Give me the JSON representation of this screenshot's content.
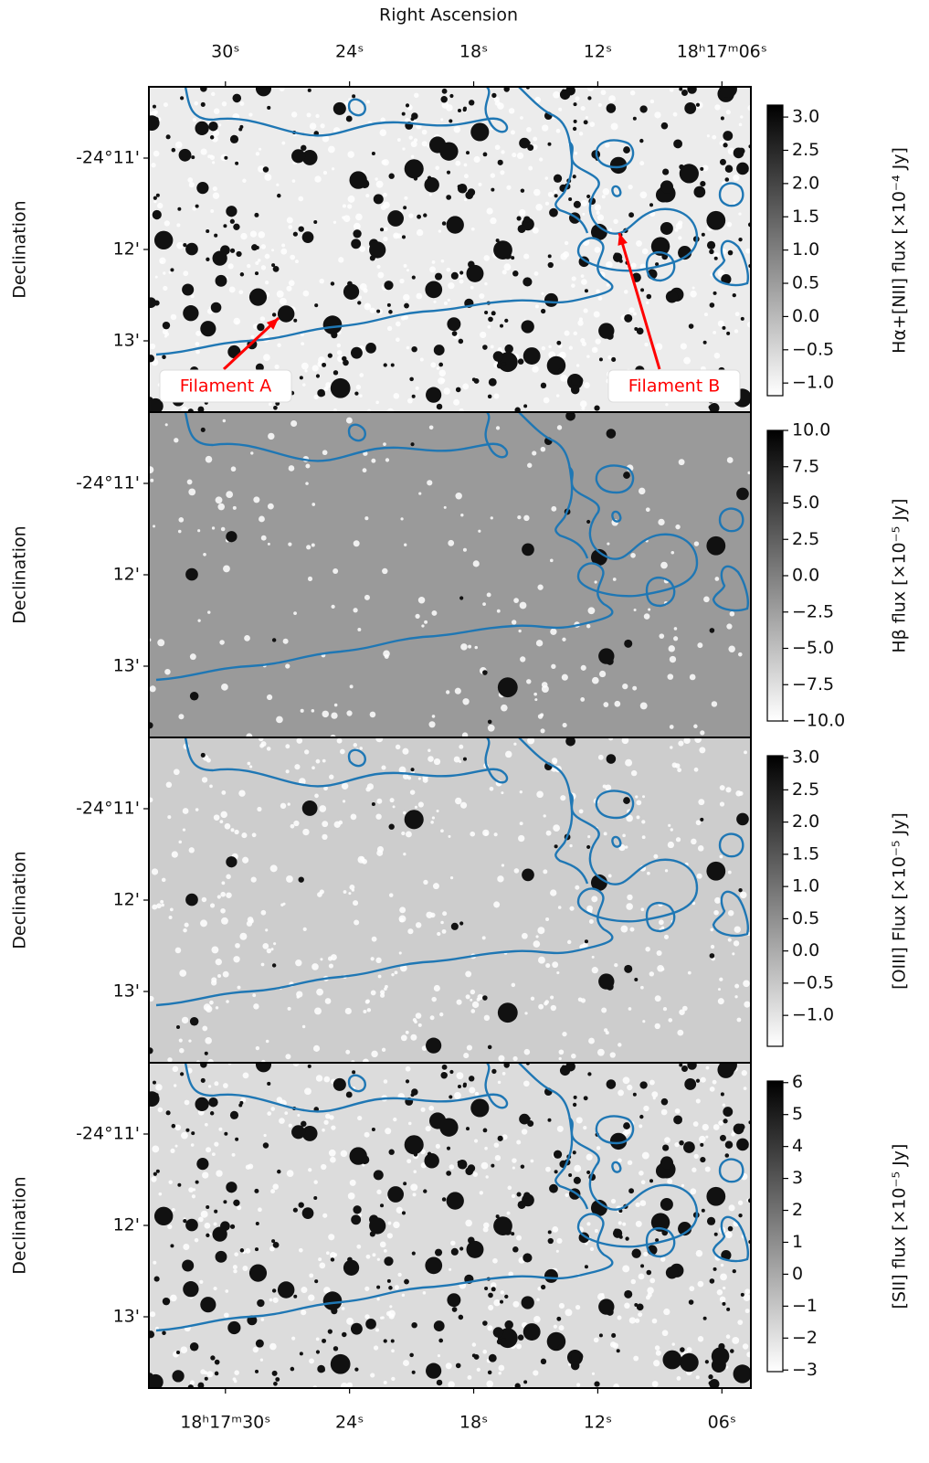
{
  "chart_data": [
    {
      "type": "image",
      "colormap": "gray_r",
      "xlabel": "Right Ascension",
      "xlim": [
        33.7,
        4.6
      ],
      "xticks": [
        {
          "value": 30,
          "label": "30ˢ"
        },
        {
          "value": 24,
          "label": "24ˢ"
        },
        {
          "value": 18,
          "label": "18ˢ"
        },
        {
          "value": 12,
          "label": "12ˢ"
        },
        {
          "value": 6,
          "label": "18ʰ17ᵐ06ˢ"
        }
      ],
      "ylabel": "Declination",
      "ylim": [
        13.78,
        10.22
      ],
      "yticks": [
        {
          "value": 11,
          "label": "-24°11'"
        },
        {
          "value": 12,
          "label": "12'"
        },
        {
          "value": 13,
          "label": "13'"
        }
      ],
      "colorbar": {
        "label": "Hα+[NII] flux [×10⁻⁴ Jy]",
        "clim": [
          -1.19,
          3.18
        ],
        "ticks": [
          {
            "value": 3,
            "label": "3.0"
          },
          2.5,
          {
            "value": 2,
            "label": "2.0"
          },
          1.5,
          {
            "value": 1,
            "label": "1.0"
          },
          0.5,
          {
            "value": 0,
            "label": "0.0"
          },
          {
            "value": -0.5,
            "label": "−0.5"
          },
          {
            "value": -1,
            "label": "−1.0"
          }
        ]
      },
      "annotations": [
        {
          "text": "Filament A",
          "color": "#ff0000"
        },
        {
          "text": "Filament B",
          "color": "#ff0000"
        }
      ]
    },
    {
      "type": "image",
      "colormap": "gray_r",
      "ylabel": "Declination",
      "xlim": [
        33.7,
        4.6
      ],
      "ylim": [
        13.78,
        10.22
      ],
      "yticks": [
        {
          "value": 11,
          "label": "-24°11'"
        },
        {
          "value": 12,
          "label": "12'"
        },
        {
          "value": 13,
          "label": "13'"
        }
      ],
      "colorbar": {
        "label": "Hβ flux [×10⁻⁵ Jy]",
        "clim": [
          -10,
          10
        ],
        "ticks": [
          {
            "value": 10,
            "label": "10.0"
          },
          7.5,
          {
            "value": 5,
            "label": "5.0"
          },
          2.5,
          {
            "value": 0,
            "label": "0.0"
          },
          {
            "value": -2.5,
            "label": "−2.5"
          },
          {
            "value": -5,
            "label": "−5.0"
          },
          {
            "value": -7.5,
            "label": "−7.5"
          },
          {
            "value": -10,
            "label": "−10.0"
          }
        ]
      }
    },
    {
      "type": "image",
      "colormap": "gray_r",
      "ylabel": "Declination",
      "xlim": [
        33.7,
        4.6
      ],
      "ylim": [
        13.78,
        10.22
      ],
      "yticks": [
        {
          "value": 11,
          "label": "-24°11'"
        },
        {
          "value": 12,
          "label": "12'"
        },
        {
          "value": 13,
          "label": "13'"
        }
      ],
      "colorbar": {
        "label": "[OIII] Flux [×10⁻⁵ Jy]",
        "clim": [
          -1.48,
          3.03
        ],
        "ticks": [
          {
            "value": 3,
            "label": "3.0"
          },
          2.5,
          {
            "value": 2,
            "label": "2.0"
          },
          1.5,
          {
            "value": 1,
            "label": "1.0"
          },
          0.5,
          {
            "value": 0,
            "label": "0.0"
          },
          {
            "value": -0.5,
            "label": "−0.5"
          },
          {
            "value": -1,
            "label": "−1.0"
          }
        ]
      }
    },
    {
      "type": "image",
      "colormap": "gray_r",
      "ylabel": "Declination",
      "xlim": [
        33.7,
        4.6
      ],
      "xticks": [
        {
          "value": 30,
          "label": "18ʰ17ᵐ30ˢ"
        },
        {
          "value": 24,
          "label": "24ˢ"
        },
        {
          "value": 18,
          "label": "18ˢ"
        },
        {
          "value": 12,
          "label": "12ˢ"
        },
        {
          "value": 6,
          "label": "06ˢ"
        }
      ],
      "ylim": [
        13.78,
        10.22
      ],
      "yticks": [
        {
          "value": 11,
          "label": "-24°11'"
        },
        {
          "value": 12,
          "label": "12'"
        },
        {
          "value": 13,
          "label": "13'"
        }
      ],
      "colorbar": {
        "label": "[SII] flux [×10⁻⁵ Jy]",
        "clim": [
          -3.05,
          6.05
        ],
        "ticks": [
          6,
          5,
          4,
          3,
          2,
          1,
          0,
          {
            "value": -1,
            "label": "−1"
          },
          {
            "value": -2,
            "label": "−2"
          },
          {
            "value": -3,
            "label": "−3"
          }
        ]
      }
    }
  ]
}
